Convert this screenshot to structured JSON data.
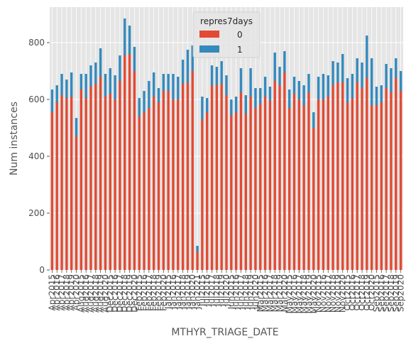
{
  "chart_data": {
    "type": "bar",
    "stacked": true,
    "xlabel": "MTHYR_TRIAGE_DATE",
    "ylabel": "Num instances",
    "ylim": [
      0,
      925
    ],
    "yticks": [
      0,
      200,
      400,
      600,
      800
    ],
    "grid": true,
    "legend": {
      "title": "repres7days",
      "position": "top-center"
    },
    "categories": [
      "Apr2015",
      "Apr2016",
      "Apr2017",
      "Apr2018",
      "Apr2019",
      "Apr2020",
      "Aug2015",
      "Aug2016",
      "Aug2017",
      "Aug2018",
      "Aug2019",
      "Aug2020",
      "Dec2015",
      "Dec2016",
      "Dec2017",
      "Dec2018",
      "Dec2019",
      "Dec2020",
      "Feb2015",
      "Feb2016",
      "Feb2017",
      "Feb2018",
      "Feb2019",
      "Feb2020",
      "Jan2015",
      "Jan2016",
      "Jan2017",
      "Jan2018",
      "Jan2019",
      "Jan2020",
      "Jan2021",
      "Jul2015",
      "Jul2016",
      "Jul2017",
      "Jul2018",
      "Jul2019",
      "Jul2020",
      "Jun2015",
      "Jun2016",
      "Jun2017",
      "Jun2018",
      "Jun2019",
      "Jun2020",
      "Mar2015",
      "Mar2016",
      "Mar2017",
      "Mar2018",
      "Mar2019",
      "Mar2020",
      "May2015",
      "May2016",
      "May2017",
      "May2018",
      "May2019",
      "May2020",
      "Nov2015",
      "Nov2016",
      "Nov2017",
      "Nov2018",
      "Nov2019",
      "Nov2020",
      "Oct2015",
      "Oct2016",
      "Oct2017",
      "Oct2018",
      "Oct2019",
      "Oct2020",
      "Sep2015",
      "Sep2016",
      "Sep2017",
      "Sep2018",
      "Sep2019",
      "Sep2020"
    ],
    "series": [
      {
        "name": "0",
        "color": "#E24A33",
        "values": [
          555,
          590,
          615,
          605,
          610,
          470,
          635,
          605,
          645,
          655,
          680,
          610,
          620,
          600,
          665,
          755,
          760,
          700,
          540,
          555,
          570,
          610,
          590,
          630,
          630,
          600,
          600,
          655,
          660,
          700,
          65,
          530,
          555,
          650,
          650,
          655,
          615,
          545,
          555,
          625,
          550,
          610,
          570,
          585,
          610,
          595,
          665,
          650,
          695,
          570,
          620,
          600,
          580,
          625,
          500,
          600,
          600,
          610,
          650,
          660,
          660,
          590,
          605,
          660,
          640,
          675,
          580,
          580,
          590,
          640,
          625,
          675,
          630
        ]
      },
      {
        "name": "1",
        "color": "#348ABD",
        "values": [
          80,
          60,
          75,
          65,
          85,
          65,
          55,
          85,
          75,
          75,
          100,
          80,
          90,
          85,
          90,
          130,
          100,
          85,
          65,
          75,
          95,
          85,
          50,
          60,
          60,
          90,
          80,
          85,
          115,
          90,
          20,
          80,
          50,
          70,
          65,
          80,
          70,
          55,
          55,
          85,
          65,
          100,
          70,
          55,
          70,
          50,
          100,
          65,
          75,
          65,
          60,
          65,
          70,
          65,
          55,
          80,
          90,
          75,
          85,
          70,
          100,
          85,
          85,
          85,
          90,
          150,
          165,
          65,
          60,
          85,
          85,
          70,
          70
        ]
      }
    ]
  }
}
